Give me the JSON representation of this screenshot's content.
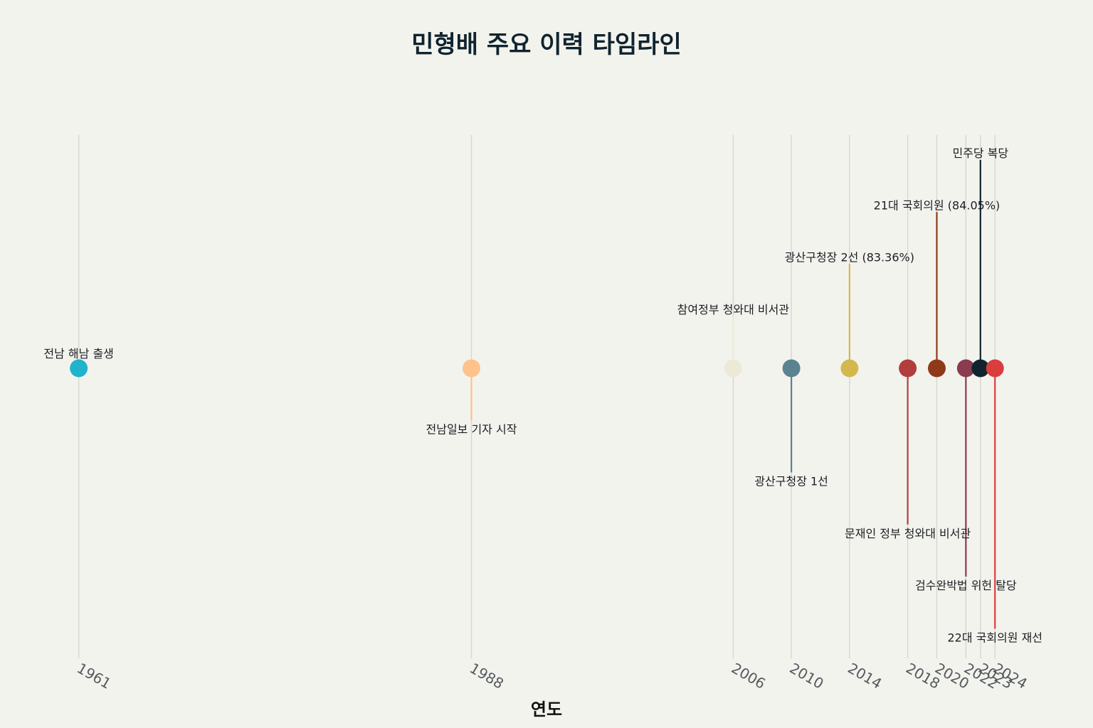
{
  "chart_data": {
    "type": "scatter",
    "title": "민형배 주요 이력 타임라인",
    "xlabel": "연도",
    "ylabel": "",
    "xlim": [
      1959.5,
      2028
    ],
    "ylim": [
      -5.5,
      5.5
    ],
    "grid": "vertical",
    "legend": "none",
    "x_ticks": [
      "1961",
      "1988",
      "2006",
      "2010",
      "2014",
      "2018",
      "2020",
      "2022",
      "2023",
      "2024"
    ],
    "events": [
      {
        "year": 1961,
        "label": "전남 해남 출생",
        "level": 0.15,
        "color": "#1fb3cc"
      },
      {
        "year": 1988,
        "label": "전남일보 기자 시작",
        "level": -1,
        "color": "#ffc28a"
      },
      {
        "year": 2006,
        "label": "참여정부 청와대 비서관",
        "level": 1,
        "color": "#ecead7"
      },
      {
        "year": 2010,
        "label": "광산구청장 1선",
        "level": -2,
        "color": "#5b8290"
      },
      {
        "year": 2014,
        "label": "광산구청장 2선 (83.36%)",
        "level": 2,
        "color": "#d4b84e"
      },
      {
        "year": 2018,
        "label": "문재인 정부 청와대 비서관",
        "level": -3,
        "color": "#b23d3d"
      },
      {
        "year": 2020,
        "label": "21대 국회의원 (84.05%)",
        "level": 3,
        "color": "#8e3a18"
      },
      {
        "year": 2022,
        "label": "검수완박법 위헌 탈당",
        "level": -4,
        "color": "#8a3b4e"
      },
      {
        "year": 2023,
        "label": "민주당 복당",
        "level": 4,
        "color": "#10242f"
      },
      {
        "year": 2024,
        "label": "22대 국회의원 재선",
        "level": -5,
        "color": "#d93d3d"
      }
    ]
  }
}
